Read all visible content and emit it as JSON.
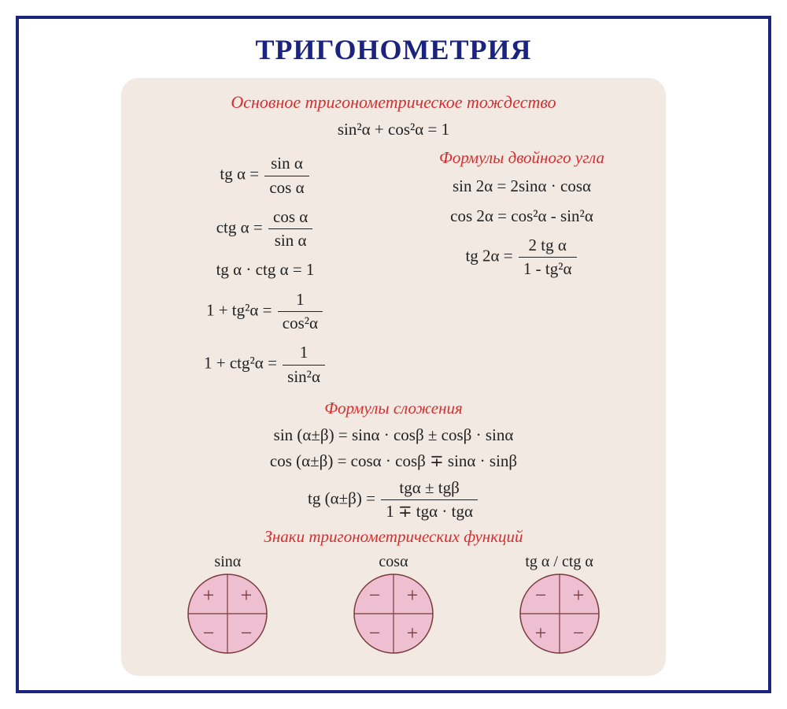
{
  "title": "ТРИГОНОМЕТРИЯ",
  "colors": {
    "frame": "#1a237e",
    "panel_bg": "#f2e9e3",
    "heading": "#d32f2f",
    "text": "#222222",
    "circle_fill": "#eebfd0",
    "circle_stroke": "#7a3b3b"
  },
  "sections": {
    "identity": {
      "heading": "Основное тригонометрическое тождество",
      "main": "sin²α +  cos²α = 1"
    },
    "basic": {
      "tg_def_lhs": "tg α =",
      "tg_def_num": "sin α",
      "tg_def_den": "cos α",
      "ctg_def_lhs": "ctg α =",
      "ctg_def_num": "cos α",
      "ctg_def_den": "sin α",
      "tg_ctg": "tg α · ctg α = 1",
      "one_tg_lhs": "1 + tg²α =",
      "one_tg_num": "1",
      "one_tg_den": "cos²α",
      "one_ctg_lhs": "1 + ctg²α =",
      "one_ctg_num": "1",
      "one_ctg_den": "sin²α"
    },
    "double": {
      "heading": "Формулы двойного угла",
      "sin2a": "sin 2α =  2sinα · cosα",
      "cos2a": "cos 2α = cos²α - sin²α",
      "tg2a_lhs": "tg 2α =",
      "tg2a_num": "2 tg α",
      "tg2a_den": "1 - tg²α"
    },
    "addition": {
      "heading": "Формулы сложения",
      "sin": "sin (α±β) = sinα · cosβ ± cosβ · sinα",
      "cos": "cos (α±β) = cosα · cosβ ∓ sinα · sinβ",
      "tg_lhs": "tg (α±β) =",
      "tg_num": "tgα ± tgβ",
      "tg_den": "1 ∓ tgα · tgα"
    },
    "signs": {
      "heading": "Знаки тригонометрических функций",
      "circles": [
        {
          "label": "sinα",
          "q1": "+",
          "q2": "+",
          "q3": "−",
          "q4": "−"
        },
        {
          "label": "cosα",
          "q1": "+",
          "q2": "−",
          "q3": "−",
          "q4": "+"
        },
        {
          "label": "tg α / ctg α",
          "q1": "+",
          "q2": "−",
          "q3": "+",
          "q4": "−"
        }
      ]
    }
  },
  "layout": {
    "circle_radius": 50,
    "sign_fontsize": 26
  }
}
